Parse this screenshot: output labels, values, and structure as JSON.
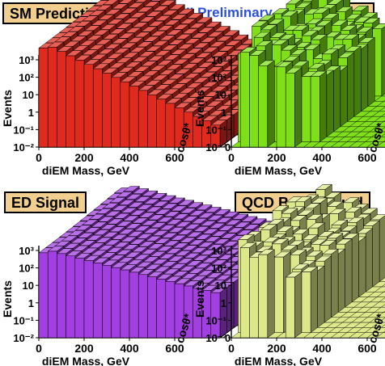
{
  "header": {
    "run_label": "DØ Run II Preliminary",
    "run_label_color": "#2a4fe0"
  },
  "title_box_color": "#f2cf8f",
  "chart_data": [
    {
      "type": "lego3d",
      "title": "SM Prediction",
      "color": "#e02a1e",
      "xlabel": "diEM Mass, GeV",
      "ylabel": "cosθ*",
      "zlabel": "Events",
      "xlim": [
        0,
        800
      ],
      "ylim": [
        0,
        1
      ],
      "zscale": "log",
      "zlim": [
        0.01,
        1000
      ],
      "xticks": [
        "0",
        "200",
        "400",
        "600"
      ],
      "yticks": [
        "0",
        "0.2",
        "0.4",
        "0.6",
        "0.8",
        "1"
      ],
      "zticks": [
        "10⁻²",
        "10⁻¹",
        "1",
        "10",
        "10²",
        "10³"
      ],
      "profile_description": "falling mass spectrum, peak ~4000 events near 100 GeV, smooth"
    },
    {
      "type": "lego3d",
      "title": "Data",
      "color": "#7fe01a",
      "xlabel": "diEM Mass, GeV",
      "ylabel": "cosθ*",
      "zlabel": "Events",
      "xlim": [
        0,
        800
      ],
      "ylim": [
        0,
        1
      ],
      "zscale": "log",
      "zlim": [
        0.01,
        1000
      ],
      "xticks": [
        "0",
        "200",
        "400",
        "600"
      ],
      "yticks": [
        "0",
        "0.2",
        "0.4",
        "0.6",
        "0.8",
        "1"
      ],
      "zticks": [
        "10⁻²",
        "10⁻¹",
        "1",
        "10",
        "10²",
        "10³"
      ],
      "profile_description": "observed counts, jagged, empty above ~350 GeV"
    },
    {
      "type": "lego3d",
      "title": "ED Signal",
      "color": "#a23fe0",
      "xlabel": "diEM Mass, GeV",
      "ylabel": "cosθ*",
      "zlabel": "Events",
      "xlim": [
        0,
        800
      ],
      "ylim": [
        0,
        1
      ],
      "zscale": "log",
      "zlim": [
        0.01,
        1000
      ],
      "xticks": [
        "0",
        "200",
        "400",
        "600"
      ],
      "yticks": [
        "0",
        "0.2",
        "0.4",
        "0.6",
        "0.8",
        "1"
      ],
      "zticks": [
        "10⁻²",
        "10⁻¹",
        "1",
        "10",
        "10²",
        "10³"
      ],
      "profile_description": "smooth falling spectrum extending to high mass"
    },
    {
      "type": "lego3d",
      "title": "QCD Background",
      "color": "#dde88a",
      "xlabel": "diEM Mass, GeV",
      "ylabel": "cosθ*",
      "zlabel": "Events",
      "xlim": [
        0,
        800
      ],
      "ylim": [
        0,
        1
      ],
      "zscale": "log",
      "zlim": [
        0.01,
        1000
      ],
      "xticks": [
        "0",
        "200",
        "400",
        "600"
      ],
      "yticks": [
        "0",
        "0.2",
        "0.4",
        "0.6",
        "0.8",
        "1"
      ],
      "zticks": [
        "10⁻²",
        "10⁻¹",
        "1",
        "10",
        "10²",
        "10³"
      ],
      "profile_description": "jagged low-mass background, empty above ~350 GeV"
    }
  ]
}
